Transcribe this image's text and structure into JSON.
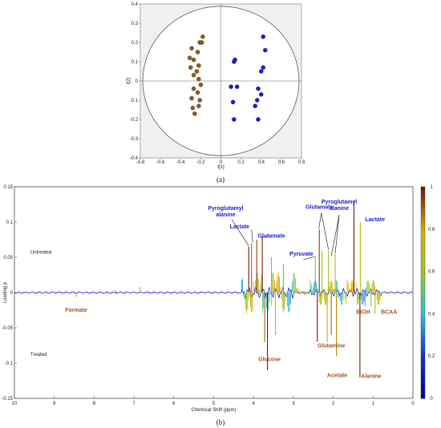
{
  "captions": {
    "a": "(a)",
    "b": "(b)"
  },
  "chart_data": [
    {
      "type": "scatter",
      "xlabel": "t[1]",
      "ylabel": "t[2]",
      "xlim": [
        -0.8,
        0.8
      ],
      "ylim": [
        -0.4,
        0.4
      ],
      "x_ticks": [
        "-0.8",
        "-0.6",
        "-0.4",
        "-0.2",
        "0",
        "0.2",
        "0.4",
        "0.6",
        "0.8"
      ],
      "y_ticks": [
        "0.4",
        "0.3",
        "0.2",
        "0.1",
        "0",
        "-0.1",
        "-0.2",
        "-0.3",
        "-0.4"
      ],
      "grid": false,
      "colors": {
        "group_a": "#8b5a1e",
        "group_b": "#1a1adf",
        "circle": "#444444",
        "bg": "#f0f0f0"
      },
      "series": [
        {
          "color": "#8b5a1e",
          "points": [
            [
              -0.18,
              0.23
            ],
            [
              -0.21,
              0.2
            ],
            [
              -0.19,
              0.2
            ],
            [
              -0.29,
              0.17
            ],
            [
              -0.23,
              0.15
            ],
            [
              -0.31,
              0.12
            ],
            [
              -0.27,
              0.11
            ],
            [
              -0.22,
              0.08
            ],
            [
              -0.3,
              0.07
            ],
            [
              -0.24,
              0.05
            ],
            [
              -0.27,
              0.03
            ],
            [
              -0.22,
              0.01
            ],
            [
              -0.2,
              -0.02
            ],
            [
              -0.27,
              -0.04
            ],
            [
              -0.23,
              -0.06
            ],
            [
              -0.29,
              -0.09
            ],
            [
              -0.21,
              -0.1
            ],
            [
              -0.28,
              -0.14
            ],
            [
              -0.22,
              -0.13
            ],
            [
              -0.26,
              -0.17
            ]
          ]
        },
        {
          "color": "#1a1adf",
          "points": [
            [
              0.42,
              0.23
            ],
            [
              0.44,
              0.16
            ],
            [
              0.14,
              0.11
            ],
            [
              0.13,
              0.1
            ],
            [
              0.42,
              0.07
            ],
            [
              0.4,
              0.05
            ],
            [
              0.1,
              -0.03
            ],
            [
              0.16,
              -0.03
            ],
            [
              0.37,
              -0.04
            ],
            [
              0.4,
              -0.07
            ],
            [
              0.36,
              -0.1
            ],
            [
              0.12,
              -0.11
            ],
            [
              0.34,
              -0.13
            ],
            [
              0.13,
              -0.2
            ],
            [
              0.37,
              -0.2
            ]
          ]
        }
      ]
    },
    {
      "type": "line",
      "xlabel": "Chemical Shift (ppm)",
      "ylabel": "Loading p",
      "xlim": [
        10,
        0
      ],
      "ylim": [
        -0.15,
        0.15
      ],
      "x_ticks": [
        "10",
        "9",
        "8",
        "7",
        "6",
        "5",
        "4",
        "3",
        "2",
        "1",
        "0"
      ],
      "y_ticks": [
        "0.15",
        "0.1",
        "0.05",
        "0",
        "-0.05",
        "-0.1",
        "-0.15"
      ],
      "colorbar": {
        "ticks": [
          "1",
          "0.8",
          "0.6",
          "0.4",
          "0.2",
          "0"
        ]
      },
      "group_labels": [
        {
          "text": "Untreated",
          "color": "#1a1adf",
          "x": 9.6,
          "y": 0.055
        },
        {
          "text": "Treated",
          "color": "#a0522d",
          "x": 9.6,
          "y": -0.09
        }
      ],
      "peaks": [
        [
          8.45,
          -0.006,
          0.8
        ],
        [
          7.45,
          0.004,
          0.6
        ],
        [
          6.85,
          0.008,
          0.7
        ],
        [
          4.12,
          0.065,
          1.0
        ],
        [
          4.05,
          0.07,
          0.9
        ],
        [
          3.92,
          0.075,
          0.95
        ],
        [
          3.78,
          0.078,
          1.0
        ],
        [
          3.72,
          -0.07,
          0.9
        ],
        [
          3.65,
          -0.11,
          1.0
        ],
        [
          3.55,
          0.05,
          0.5
        ],
        [
          3.45,
          -0.06,
          0.7
        ],
        [
          3.25,
          0.04,
          0.4
        ],
        [
          2.45,
          0.05,
          0.5
        ],
        [
          2.4,
          -0.07,
          1.0
        ],
        [
          2.35,
          0.09,
          0.95
        ],
        [
          2.28,
          0.06,
          0.7
        ],
        [
          2.15,
          -0.07,
          0.8
        ],
        [
          2.12,
          0.06,
          0.6
        ],
        [
          2.05,
          -0.06,
          0.9
        ],
        [
          1.95,
          0.055,
          0.8
        ],
        [
          1.92,
          -0.09,
          0.85
        ],
        [
          1.48,
          0.13,
          1.0
        ],
        [
          1.33,
          -0.12,
          1.0
        ],
        [
          1.32,
          0.1,
          0.7
        ],
        [
          1.2,
          -0.02,
          0.5
        ],
        [
          1.05,
          -0.02,
          0.55
        ],
        [
          0.95,
          -0.03,
          0.6
        ]
      ],
      "annotations": [
        {
          "text": "Pyroglutamyl",
          "color": "#1a1adf",
          "x": 4.7,
          "y": 0.117
        },
        {
          "text": "alanine",
          "color": "#1a1adf",
          "x": 4.7,
          "y": 0.108
        },
        {
          "text": "Lactate",
          "color": "#1a1adf",
          "x": 4.35,
          "y": 0.091
        },
        {
          "text": "Glutamate",
          "color": "#1a1adf",
          "x": 3.55,
          "y": 0.078
        },
        {
          "text": "Pyruvate",
          "color": "#1a1adf",
          "x": 2.8,
          "y": 0.052
        },
        {
          "text": "Glutamate",
          "color": "#1a1adf",
          "x": 2.35,
          "y": 0.119
        },
        {
          "text": "Pyroglutamyl",
          "color": "#1a1adf",
          "x": 1.85,
          "y": 0.126
        },
        {
          "text": "alanine",
          "color": "#1a1adf",
          "x": 1.85,
          "y": 0.117
        },
        {
          "text": "Lactate",
          "color": "#1a1adf",
          "x": 0.95,
          "y": 0.101
        },
        {
          "text": "Formate",
          "color": "#a0522d",
          "x": 8.45,
          "y": -0.027
        },
        {
          "text": "Glucose",
          "color": "#a0522d",
          "x": 3.6,
          "y": -0.097
        },
        {
          "text": "Glutamine",
          "color": "#a0522d",
          "x": 2.05,
          "y": -0.078
        },
        {
          "text": "Acetate",
          "color": "#a0522d",
          "x": 1.9,
          "y": -0.12
        },
        {
          "text": "Alanine",
          "color": "#a0522d",
          "x": 1.05,
          "y": -0.121
        },
        {
          "text": "EtOH",
          "color": "#a0522d",
          "x": 1.25,
          "y": -0.03
        },
        {
          "text": "BCAA",
          "color": "#a0522d",
          "x": 0.6,
          "y": -0.03
        }
      ],
      "arrows": [
        [
          4.55,
          0.104,
          4.12,
          0.066
        ],
        [
          4.05,
          0.089,
          4.02,
          0.071
        ],
        [
          3.65,
          0.08,
          3.8,
          0.078
        ],
        [
          2.75,
          0.047,
          2.45,
          0.051
        ],
        [
          2.3,
          0.113,
          2.36,
          0.091
        ],
        [
          2.3,
          0.113,
          2.12,
          0.061
        ],
        [
          1.85,
          0.11,
          2.05,
          0.052
        ],
        [
          1.85,
          0.11,
          1.95,
          0.056
        ]
      ]
    }
  ]
}
